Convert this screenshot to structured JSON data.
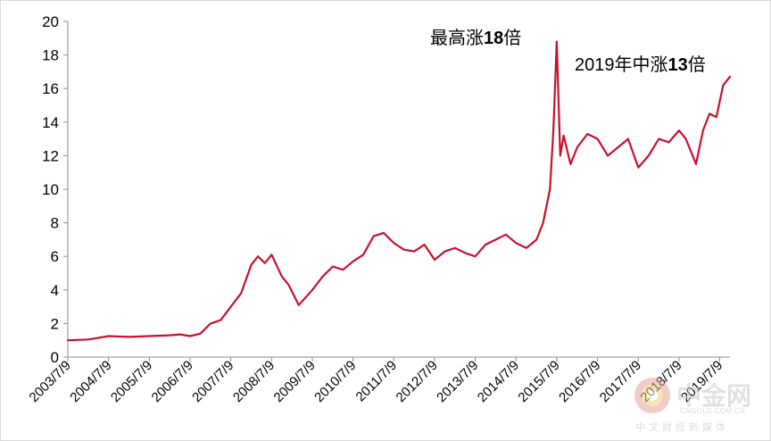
{
  "chart_data": {
    "type": "line",
    "ylim": [
      0,
      20
    ],
    "yticks": [
      0,
      2,
      4,
      6,
      8,
      10,
      12,
      14,
      16,
      18,
      20
    ],
    "xticks": [
      "2003/7/9",
      "2004/7/9",
      "2005/7/9",
      "2006/7/9",
      "2007/7/9",
      "2008/7/9",
      "2009/7/9",
      "2010/7/9",
      "2011/7/9",
      "2012/7/9",
      "2013/7/9",
      "2014/7/9",
      "2015/7/9",
      "2016/7/9",
      "2017/7/9",
      "2018/7/9",
      "2019/7/9"
    ],
    "grid": false,
    "legend": "none",
    "line_color": "#c8102e",
    "series": [
      {
        "x": [
          "2003/7/9",
          "2004/1/9",
          "2004/7/9",
          "2005/1/9",
          "2005/7/9",
          "2006/1/9",
          "2006/4/9",
          "2006/7/9",
          "2006/10/9",
          "2007/1/9",
          "2007/4/9",
          "2007/7/9",
          "2007/10/9",
          "2008/1/9",
          "2008/3/9",
          "2008/5/9",
          "2008/7/9",
          "2008/10/9",
          "2008/12/9",
          "2009/3/9",
          "2009/7/9",
          "2009/10/9",
          "2010/1/9",
          "2010/4/9",
          "2010/7/9",
          "2010/10/9",
          "2011/1/9",
          "2011/4/9",
          "2011/7/9",
          "2011/10/9",
          "2012/1/9",
          "2012/4/9",
          "2012/7/9",
          "2012/10/9",
          "2013/1/9",
          "2013/4/9",
          "2013/7/9",
          "2013/10/9",
          "2014/1/9",
          "2014/4/9",
          "2014/7/9",
          "2014/10/9",
          "2015/1/9",
          "2015/3/9",
          "2015/5/9",
          "2015/6/9",
          "2015/7/9",
          "2015/8/9",
          "2015/9/9",
          "2015/11/9",
          "2016/1/9",
          "2016/4/9",
          "2016/7/9",
          "2016/10/9",
          "2017/1/9",
          "2017/4/9",
          "2017/7/9",
          "2017/10/9",
          "2018/1/9",
          "2018/4/9",
          "2018/7/9",
          "2018/9/9",
          "2018/12/9",
          "2019/2/9",
          "2019/4/9",
          "2019/6/9",
          "2019/8/9",
          "2019/10/9"
        ],
        "values": [
          1.0,
          1.05,
          1.25,
          1.2,
          1.25,
          1.3,
          1.35,
          1.25,
          1.4,
          2.0,
          2.2,
          3.0,
          3.8,
          5.5,
          6.0,
          5.6,
          6.1,
          4.8,
          4.3,
          3.1,
          4.0,
          4.8,
          5.4,
          5.2,
          5.7,
          6.1,
          7.2,
          7.4,
          6.8,
          6.4,
          6.3,
          6.7,
          5.8,
          6.3,
          6.5,
          6.2,
          6.0,
          6.7,
          7.0,
          7.3,
          6.8,
          6.5,
          7.0,
          8.0,
          10.0,
          13.5,
          18.8,
          12.0,
          13.2,
          11.5,
          12.5,
          13.3,
          13.0,
          12.0,
          12.5,
          13.0,
          11.3,
          12.0,
          13.0,
          12.8,
          13.5,
          13.0,
          11.5,
          13.5,
          14.5,
          14.3,
          16.2,
          16.7
        ]
      }
    ]
  },
  "annotations": {
    "peak_prefix": "最高涨",
    "peak_bold": "18",
    "peak_suffix": "倍",
    "latest_prefix": "2019年中涨",
    "latest_bold": "13",
    "latest_suffix": "倍"
  },
  "watermark": {
    "brand": "中金网",
    "url": "CNGOLD.COM.CN",
    "tagline": "中文财经新媒体"
  }
}
